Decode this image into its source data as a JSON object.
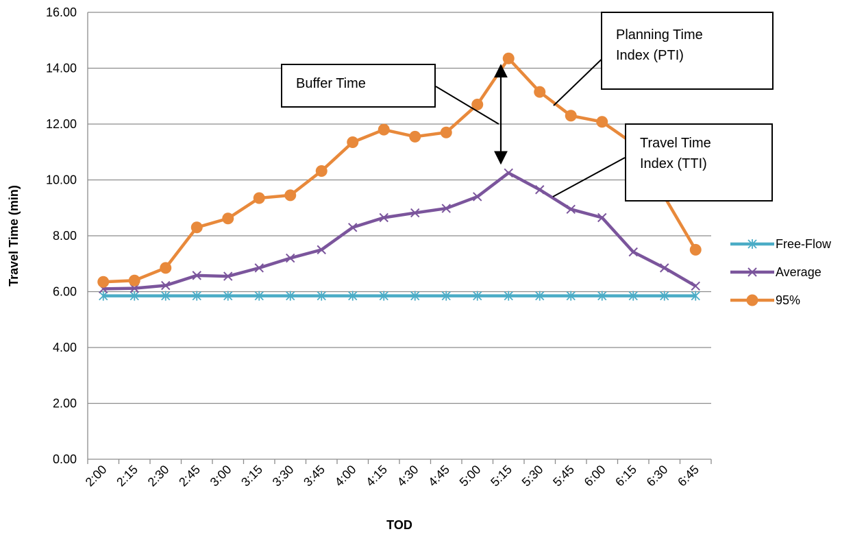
{
  "chart_data": {
    "type": "line",
    "xlabel": "TOD",
    "ylabel": "Travel Time (min)",
    "ylim": [
      0,
      16
    ],
    "yticks": [
      "0.00",
      "2.00",
      "4.00",
      "6.00",
      "8.00",
      "10.00",
      "12.00",
      "14.00",
      "16.00"
    ],
    "categories": [
      "2:00",
      "2:15",
      "2:30",
      "2:45",
      "3:00",
      "3:15",
      "3:30",
      "3:45",
      "4:00",
      "4:15",
      "4:30",
      "4:45",
      "5:00",
      "5:15",
      "5:30",
      "5:45",
      "6:00",
      "6:15",
      "6:30",
      "6:45"
    ],
    "grid": true,
    "legend_position": "right",
    "series": [
      {
        "name": "Free-Flow",
        "color": "#4BACC6",
        "marker": "asterisk",
        "values": [
          5.85,
          5.85,
          5.85,
          5.85,
          5.85,
          5.85,
          5.85,
          5.85,
          5.85,
          5.85,
          5.85,
          5.85,
          5.85,
          5.85,
          5.85,
          5.85,
          5.85,
          5.85,
          5.85,
          5.85
        ]
      },
      {
        "name": "Average",
        "color": "#7B559C",
        "marker": "x",
        "values": [
          6.1,
          6.12,
          6.22,
          6.58,
          6.55,
          6.85,
          7.2,
          7.5,
          8.3,
          8.65,
          8.82,
          8.98,
          9.4,
          10.25,
          9.65,
          8.95,
          8.65,
          7.42,
          6.85,
          6.2
        ]
      },
      {
        "name": "95%",
        "color": "#E8893B",
        "marker": "circle",
        "values": [
          6.35,
          6.4,
          6.85,
          8.3,
          8.62,
          9.35,
          9.45,
          10.32,
          11.35,
          11.8,
          11.55,
          11.7,
          12.7,
          14.35,
          13.15,
          12.3,
          12.08,
          11.3,
          null,
          7.5
        ]
      }
    ],
    "annotations": [
      {
        "id": "buffer",
        "lines": [
          "Buffer Time"
        ]
      },
      {
        "id": "pti",
        "lines": [
          "Planning Time",
          "Index (PTI)"
        ]
      },
      {
        "id": "tti",
        "lines": [
          "Travel Time",
          "Index (TTI)"
        ]
      }
    ]
  }
}
